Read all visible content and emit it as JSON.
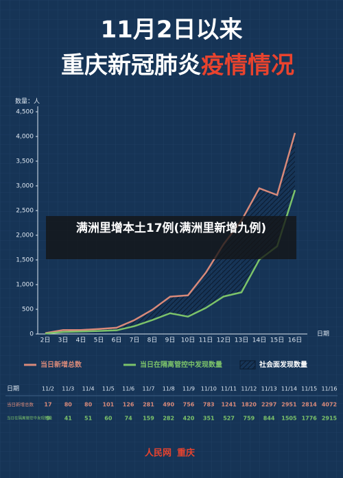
{
  "chart_data": {
    "type": "line",
    "title": "11月2日以来",
    "subtitle": "重庆新冠肺炎",
    "subtitle_highlight": "疫情情况",
    "y_label": "数量：人",
    "categories": [
      "2日",
      "3日",
      "4日",
      "5日",
      "6日",
      "7日",
      "8日",
      "9日",
      "10日",
      "11日",
      "12日",
      "13日",
      "14日",
      "15日",
      "16日"
    ],
    "series": [
      {
        "name": "当日新增总数",
        "color": "#d98a7a",
        "values": [
          17,
          80,
          80,
          101,
          126,
          281,
          490,
          756,
          783,
          1241,
          1820,
          2297,
          2951,
          2814,
          4072
        ]
      },
      {
        "name": "当日在隔离管控中发现数量",
        "color": "#7cc36a",
        "values": [
          9,
          41,
          51,
          60,
          74,
          159,
          282,
          420,
          351,
          527,
          759,
          844,
          1505,
          1776,
          2915
        ]
      }
    ],
    "hatch_legend": "社会面发现数量",
    "ylim": [
      0,
      4500
    ],
    "yticks": [
      0,
      {
        "value": 500,
        "label": "500"
      },
      {
        "value": 1000,
        "label": "1,000"
      },
      {
        "value": 1500,
        "label": "1,500"
      },
      {
        "value": 2000,
        "label": "2,000"
      },
      {
        "value": 2500,
        "label": "2,500"
      },
      {
        "value": 3000,
        "label": "3,000"
      },
      {
        "value": 3500,
        "label": "3,500"
      },
      {
        "value": 4000,
        "label": "4,000"
      },
      {
        "value": 4500,
        "label": "4,500"
      }
    ],
    "x_label": "日期",
    "table": {
      "header": "日期",
      "dates": [
        "11/2",
        "11/3",
        "11/4",
        "11/5",
        "11/6",
        "11/7",
        "11/8",
        "11/9",
        "11/10",
        "11/11",
        "11/12",
        "11/13",
        "11/14",
        "11/15",
        "11/16"
      ],
      "row_labels": [
        "当日新增总数",
        "当日在隔离管控中发现数量"
      ]
    },
    "footer": [
      "人民网",
      "重庆"
    ],
    "overlay": "满洲里增本土17例(满洲里新增九例)"
  }
}
